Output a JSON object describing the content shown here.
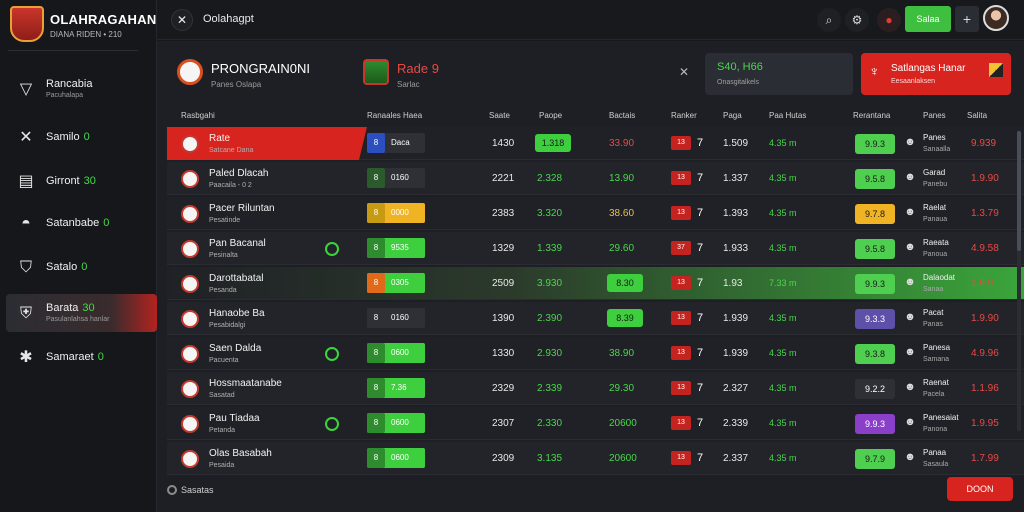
{
  "brand": {
    "title": "OLAHRAGAHAN",
    "subtitle": "DIANA RIDEN • 210"
  },
  "sidebar": {
    "items": [
      {
        "label": "Rancabia",
        "sub": "Pacuhalapa",
        "count": "",
        "icon": "trophy-icon"
      },
      {
        "label": "Samilo",
        "sub": "",
        "count": "0",
        "icon": "x-icon"
      },
      {
        "label": "Girront",
        "sub": "",
        "count": "30",
        "icon": "clipboard-icon"
      },
      {
        "label": "Satanbabe",
        "sub": "",
        "count": "0",
        "icon": "hat-icon"
      },
      {
        "label": "Satalo",
        "sub": "",
        "count": "0",
        "icon": "bucket-icon"
      },
      {
        "label": "Barata",
        "sub": "Pasulanlahsa hanlar",
        "count": "30",
        "icon": "shield-icon",
        "active": true
      },
      {
        "label": "Samaraet",
        "sub": "",
        "count": "0",
        "icon": "star-icon"
      }
    ]
  },
  "topbar": {
    "title": "Oolahagpt",
    "primary_label": "Salaa"
  },
  "match": {
    "team1_title": "PRONGRAIN0NI",
    "team1_sub": "Panes Oslapa",
    "team2_title": "Rade 9",
    "team2_sub": "Sarlac",
    "stat_value": "S40, H66",
    "stat_sub": "Onasgitalkels",
    "alert_title": "Satlangas Hanar",
    "alert_sub": "Eesaanlaksen"
  },
  "table": {
    "headers": [
      "Rasbgahi",
      "Ranaales Haea",
      "Saate",
      "Paope",
      "Bactais",
      "Ranker",
      "Paga",
      "Paa Hutas",
      "Rerantana",
      "Panes",
      "Salita"
    ],
    "rows": [
      {
        "name": "Rate",
        "sub": "Satcane Dana",
        "odd_chip": "8",
        "odd_chip_color": "#2b4fbf",
        "odd_val": "Daca",
        "odd_bg": "#2e3035",
        "n1": "1430",
        "pill": "1.318",
        "pill_color": "#3ecf3e",
        "n2": "33.90",
        "n2_class": "c-red",
        "chip": "13",
        "n3": "1.509",
        "green": "4.35 m",
        "score": "9.9.3",
        "score_color": "#4fcf4f",
        "pname": "Panes",
        "psub": "Sanaalla",
        "last": "9.939"
      },
      {
        "name": "Paled Dlacah",
        "sub": "Paacaila - 0 2",
        "odd_chip": "8",
        "odd_chip_color": "#2b5a2b",
        "odd_val": "0160",
        "odd_bg": "#2e3035",
        "n1": "2221",
        "pill": "2.328",
        "pill_color": "",
        "n2": "13.90",
        "n2_class": "c-green",
        "chip": "13",
        "n3": "1.337",
        "green": "4.35 m",
        "score": "9.5.8",
        "score_color": "#4fcf4f",
        "pname": "Garad",
        "psub": "Panebu",
        "last": "1.9.90"
      },
      {
        "name": "Pacer Riluntan",
        "sub": "Pesatinde",
        "odd_chip": "8",
        "odd_chip_color": "#c79a13",
        "odd_val": "0000",
        "odd_bg": "#f0b323",
        "n1": "2383",
        "pill": "3.320",
        "pill_color": "",
        "n2": "38.60",
        "n2_class": "c-yellow",
        "chip": "13",
        "n3": "1.393",
        "green": "4.35 m",
        "score": "9.7.8",
        "score_color": "#f0b323",
        "pname": "Raelat",
        "psub": "Panaua",
        "last": "1.3.79"
      },
      {
        "name": "Pan Bacanal",
        "sub": "Pesinalta",
        "odd_chip": "8",
        "odd_chip_color": "#2e8c2e",
        "odd_val": "9535",
        "odd_bg": "#3ecf3e",
        "n1": "1329",
        "pill": "1.339",
        "pill_color": "",
        "n2": "29.60",
        "n2_class": "c-green",
        "chip": "37",
        "n3": "1.933",
        "green": "4.35 m",
        "score": "9.5.8",
        "score_color": "#4fcf4f",
        "pname": "Raeata",
        "psub": "Panoua",
        "last": "4.9.58"
      },
      {
        "name": "Darottabatal",
        "sub": "Pesanda",
        "odd_chip": "8",
        "odd_chip_color": "#e06a1a",
        "odd_val": "0305",
        "odd_bg": "#3ecf3e",
        "n1": "2509",
        "pill": "3.930",
        "pill_color": "",
        "n2": "8.30",
        "n2_class": "",
        "chip": "13",
        "n3": "1.93",
        "green": "7.33 m",
        "score": "9.9.3",
        "score_color": "#4fcf4f",
        "pname": "Dalaodat",
        "psub": "Sanaa",
        "last": "1.9.9"
      },
      {
        "name": "Hanaobe Ba",
        "sub": "Pesabidalgi",
        "odd_chip": "8",
        "odd_chip_color": "#2e3035",
        "odd_val": "0160",
        "odd_bg": "#2e3035",
        "n1": "1390",
        "pill": "2.390",
        "pill_color": "",
        "n2": "8.39",
        "n2_class": "",
        "chip": "13",
        "n3": "1.939",
        "green": "4.35 m",
        "score": "9.3.3",
        "score_color": "#5e4fa8",
        "pname": "Pacat",
        "psub": "Panas",
        "last": "1.9.90"
      },
      {
        "name": "Saen Dalda",
        "sub": "Pacuenta",
        "odd_chip": "8",
        "odd_chip_color": "#2e8c2e",
        "odd_val": "0600",
        "odd_bg": "#3ecf3e",
        "n1": "1330",
        "pill": "2.930",
        "pill_color": "",
        "n2": "38.90",
        "n2_class": "c-green",
        "chip": "13",
        "n3": "1.939",
        "green": "4.35 m",
        "score": "9.3.8",
        "score_color": "#4fcf4f",
        "pname": "Panesa",
        "psub": "Samana",
        "last": "4.9.96"
      },
      {
        "name": "Hossmaatanabe",
        "sub": "Sasatad",
        "odd_chip": "8",
        "odd_chip_color": "#2e8c2e",
        "odd_val": "7.36",
        "odd_bg": "#3ecf3e",
        "n1": "2329",
        "pill": "2.339",
        "pill_color": "",
        "n2": "29.30",
        "n2_class": "c-green",
        "chip": "13",
        "n3": "2.327",
        "green": "4.35 m",
        "score": "9.2.2",
        "score_color": "#2e3035",
        "pname": "Raenat",
        "psub": "Pacela",
        "last": "1.1.96"
      },
      {
        "name": "Pau Tiadaa",
        "sub": "Petanda",
        "odd_chip": "8",
        "odd_chip_color": "#2e8c2e",
        "odd_val": "0600",
        "odd_bg": "#3ecf3e",
        "n1": "2307",
        "pill": "2.330",
        "pill_color": "",
        "n2": "20600",
        "n2_class": "c-green",
        "chip": "13",
        "n3": "2.339",
        "green": "4.35 m",
        "score": "9.9.3",
        "score_color": "#8a3fc9",
        "pname": "Panesaiat",
        "psub": "Panona",
        "last": "1.9.95"
      },
      {
        "name": "Olas Basabah",
        "sub": "Pesaida",
        "odd_chip": "8",
        "odd_chip_color": "#2e8c2e",
        "odd_val": "0600",
        "odd_bg": "#3ecf3e",
        "n1": "2309",
        "pill": "3.135",
        "pill_color": "",
        "n2": "20600",
        "n2_class": "c-green",
        "chip": "13",
        "n3": "2.337",
        "green": "4.35 m",
        "score": "9.7.9",
        "score_color": "#4fcf4f",
        "pname": "Panaa",
        "psub": "Sasaula",
        "last": "1.7.99"
      }
    ]
  },
  "footer": {
    "note": "Sasatas",
    "button": "DOON"
  }
}
